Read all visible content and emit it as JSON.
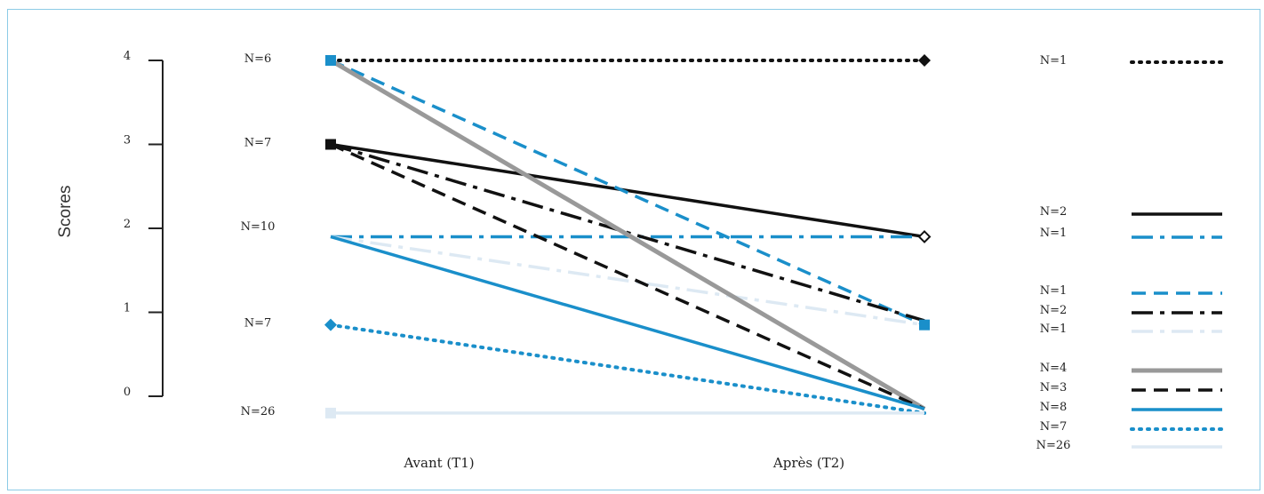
{
  "chart_data": {
    "type": "line",
    "ylabel": "Scores",
    "x": [
      "Avant (T1)",
      "Après (T2)"
    ],
    "yticks": [
      0,
      1,
      2,
      3,
      4
    ],
    "ylim": [
      0,
      4
    ],
    "grid": false,
    "legend_placement": "right",
    "start_group_labels": [
      {
        "y": 4,
        "label": "N=6"
      },
      {
        "y": 3,
        "label": "N=7"
      },
      {
        "y": 2,
        "label": "N=10"
      },
      {
        "y": 0.85,
        "label": "N=7"
      },
      {
        "y": -0.2,
        "label": "N=26"
      }
    ],
    "series": [
      {
        "label": "N=1",
        "values": [
          4,
          4
        ],
        "color": "#111111",
        "style": "dotted",
        "marker": "diamond"
      },
      {
        "label": "N=2",
        "values": [
          3,
          1.9
        ],
        "color": "#111111",
        "style": "solid",
        "marker": "square"
      },
      {
        "label": "N=1",
        "values": [
          1.9,
          1.9
        ],
        "color": "#1a8fca",
        "style": "dashdot"
      },
      {
        "label": "N=1",
        "values": [
          4,
          0.85
        ],
        "color": "#1a8fca",
        "style": "dashed",
        "marker": "square"
      },
      {
        "label": "N=2",
        "values": [
          3,
          0.9
        ],
        "color": "#111111",
        "style": "dashdot"
      },
      {
        "label": "N=1",
        "values": [
          1.9,
          0.85
        ],
        "color": "#dde9f3",
        "style": "dashdot"
      },
      {
        "label": "N=4",
        "values": [
          4,
          -0.15
        ],
        "color": "#999999",
        "style": "solid"
      },
      {
        "label": "N=3",
        "values": [
          3,
          -0.15
        ],
        "color": "#111111",
        "style": "dashed"
      },
      {
        "label": "N=8",
        "values": [
          1.9,
          -0.15
        ],
        "color": "#1a8fca",
        "style": "solid"
      },
      {
        "label": "N=7",
        "values": [
          0.85,
          -0.2
        ],
        "color": "#1a8fca",
        "style": "dotted",
        "marker": "diamond"
      },
      {
        "label": "N=26",
        "values": [
          -0.2,
          -0.2
        ],
        "color": "#dde9f3",
        "style": "solid",
        "marker": "square"
      }
    ]
  }
}
